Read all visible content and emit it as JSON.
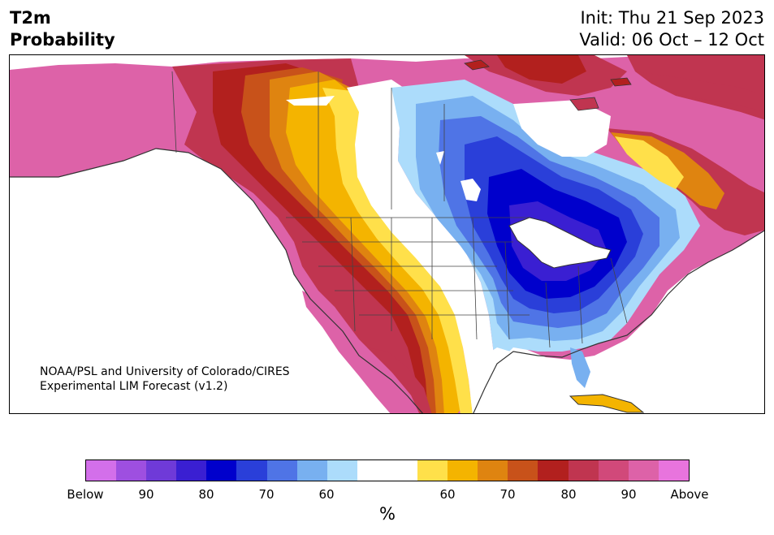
{
  "title": {
    "line1": "T2m",
    "line2": "Probability"
  },
  "dates": {
    "init": "Init: Thu 21 Sep 2023",
    "valid": "Valid: 06 Oct – 12 Oct"
  },
  "credit": {
    "line1": "NOAA/PSL and University of Colorado/CIRES",
    "line2": "Experimental LIM Forecast (v1.2)"
  },
  "colorbar": {
    "unit": "%",
    "colors": [
      "#d36fea",
      "#9e4fe0",
      "#6f3ad8",
      "#3a1fd2",
      "#0000cc",
      "#2a3fd9",
      "#4f74e6",
      "#78b0f0",
      "#acdcfb",
      "#ffffff",
      "#ffffff",
      "#ffe04a",
      "#f4b400",
      "#df8410",
      "#c8521a",
      "#b2201e",
      "#c03550",
      "#d1497a",
      "#dd62a8",
      "#e874dd"
    ],
    "ticks": [
      "Below",
      "90",
      "80",
      "70",
      "60",
      "60",
      "70",
      "80",
      "90",
      "Above"
    ]
  },
  "legend_colors": {
    "below_strong": "#0000cc",
    "below_weak": "#acdcfb",
    "above_weak": "#ffe04a",
    "above_strong": "#dd62a8"
  }
}
